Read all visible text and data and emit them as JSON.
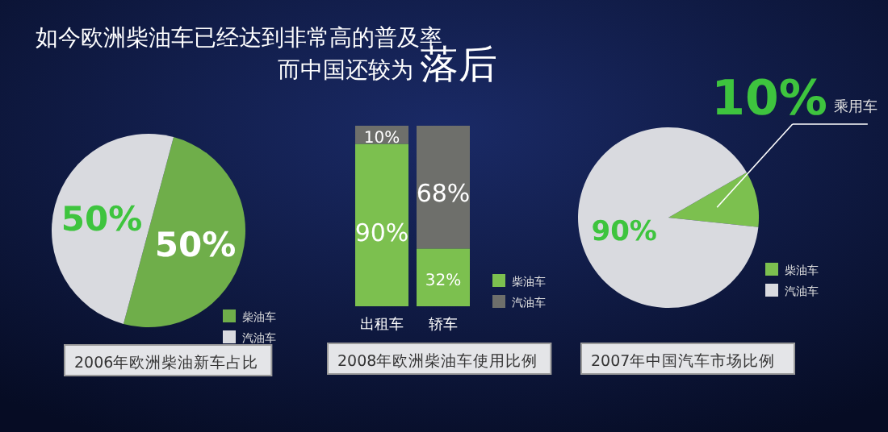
{
  "chart_data": [
    {
      "type": "other",
      "title": "如今欧洲柴油车已经达到非常高的普及率",
      "subtitle": "而中国还较为**落后**"
    },
    {
      "type": "pie",
      "categories": [
        "柴油车",
        "汽油车"
      ],
      "values": [
        50,
        50
      ],
      "colors": [
        "#6fae4a",
        "#d9dadf"
      ],
      "value_labels": [
        "50%",
        "50%"
      ],
      "legend": "bottom right",
      "annotations": [
        "2006年欧洲柴油新车占比"
      ]
    },
    {
      "type": "bar",
      "stacked": true,
      "categories": [
        "出租车",
        "轿车"
      ],
      "series": [
        {
          "name": "柴油车",
          "color": "#7cc04f",
          "values": [
            90,
            32
          ],
          "value_labels": [
            "90%",
            "32%"
          ]
        },
        {
          "name": "汽油车",
          "color": "#6e6f6b",
          "values": [
            10,
            68
          ],
          "value_labels": [
            "10%",
            "68%"
          ]
        }
      ],
      "legend": "bottom right",
      "annotations": [
        "2008年欧洲柴油车使用比例"
      ]
    },
    {
      "type": "pie",
      "categories": [
        "柴油车",
        "汽油车"
      ],
      "values": [
        10,
        90
      ],
      "colors": [
        "#7cc04f",
        "#d9dadf"
      ],
      "value_labels": [
        "10%",
        "90%"
      ],
      "legend": "bottom right",
      "annotations": [
        "乘用车",
        "2007年中国汽车市场比例"
      ]
    }
  ]
}
